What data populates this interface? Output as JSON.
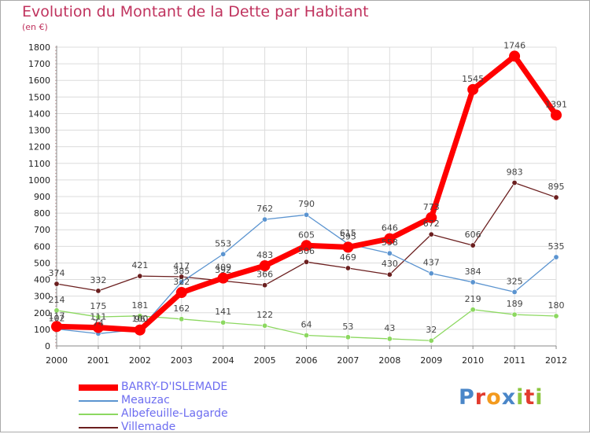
{
  "title": "Evolution du Montant de la Dette par Habitant",
  "subtitle": "(en €)",
  "logo": {
    "text": "Proxiti",
    "letters": [
      {
        "ch": "P",
        "color": "#4a86c8"
      },
      {
        "ch": "r",
        "color": "#e23b2e"
      },
      {
        "ch": "o",
        "color": "#f39a1e"
      },
      {
        "ch": "x",
        "color": "#4a86c8"
      },
      {
        "ch": "i",
        "color": "#8cc63f"
      },
      {
        "ch": "t",
        "color": "#e23b2e"
      },
      {
        "ch": "i",
        "color": "#8cc63f"
      }
    ]
  },
  "chart_data": {
    "type": "line",
    "x": [
      "2000",
      "2001",
      "2002",
      "2003",
      "2004",
      "2005",
      "2006",
      "2007",
      "2008",
      "2009",
      "2010",
      "2011",
      "2012"
    ],
    "ylim": [
      0,
      1800
    ],
    "yticks": [
      0,
      100,
      200,
      300,
      400,
      500,
      600,
      700,
      800,
      900,
      1000,
      1100,
      1200,
      1300,
      1400,
      1500,
      1600,
      1700,
      1800
    ],
    "grid": true,
    "legend_position": "bottom-left",
    "series": [
      {
        "name": "Villemade",
        "color": "#6b1f1f",
        "values": [
          374,
          332,
          421,
          417,
          392,
          366,
          506,
          469,
          430,
          672,
          606,
          983,
          895
        ]
      },
      {
        "name": "Albefeuille-Lagarde",
        "color": "#8cd860",
        "values": [
          214,
          175,
          181,
          162,
          141,
          122,
          64,
          53,
          43,
          32,
          219,
          189,
          180
        ]
      },
      {
        "name": "Meauzac",
        "color": "#5b94d0",
        "values": [
          102,
          74,
          100,
          385,
          553,
          762,
          790,
          615,
          558,
          437,
          384,
          325,
          535
        ]
      },
      {
        "name": "BARRY-D'ISLEMADE",
        "color": "#ff0000",
        "values": [
          117,
          111,
          96,
          322,
          409,
          483,
          605,
          595,
          646,
          773,
          1545,
          1746,
          1391
        ]
      }
    ],
    "legend_order": [
      "BARRY-D'ISLEMADE",
      "Meauzac",
      "Albefeuille-Lagarde",
      "Villemade"
    ]
  }
}
